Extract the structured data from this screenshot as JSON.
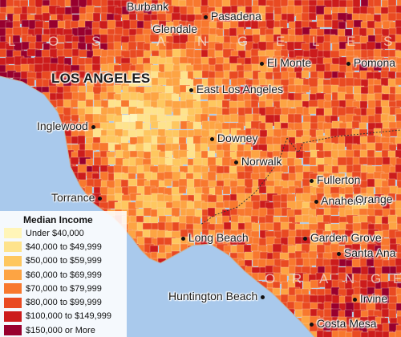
{
  "legend": {
    "title": "Median Income",
    "classes": [
      {
        "label": "Under $40,000",
        "color": "#fff5b8"
      },
      {
        "label": "$40,000 to $49,999",
        "color": "#fee38c"
      },
      {
        "label": "$50,000 to $59,999",
        "color": "#fec75f"
      },
      {
        "label": "$60,000 to $69,999",
        "color": "#fda443"
      },
      {
        "label": "$70,000 to $79,999",
        "color": "#f8782e"
      },
      {
        "label": "$80,000 to $99,999",
        "color": "#e94a22"
      },
      {
        "label": "$100,000 to $149,999",
        "color": "#cc1c1c"
      },
      {
        "label": "$150,000 or More",
        "color": "#98002e"
      }
    ]
  },
  "water_color": "#a9c9ec",
  "cities": {
    "burbank": "Burbank",
    "pasadena": "Pasadena",
    "glendale": "Glendale",
    "el_monte": "El Monte",
    "pomona": "Pomona",
    "los_angeles": "LOS ANGELES",
    "east_los_angeles": "East Los Angeles",
    "inglewood": "Inglewood",
    "downey": "Downey",
    "norwalk": "Norwalk",
    "fullerton": "Fullerton",
    "torrance": "Torrance",
    "anaheim": "Anaheim",
    "orange": "Orange",
    "long_beach": "Long Beach",
    "garden_grove": "Garden Grove",
    "santa_ana": "Santa Ana",
    "huntington_beach": "Huntington Beach",
    "irvine": "Irvine",
    "costa_mesa": "Costa Mesa"
  },
  "county_labels": {
    "los_angeles_letters": [
      "L",
      "O",
      "S",
      "A",
      "N",
      "G",
      "E",
      "L",
      "E",
      "S"
    ],
    "orange_letters": [
      "O",
      "R",
      "A",
      "N",
      "G",
      "E"
    ]
  }
}
